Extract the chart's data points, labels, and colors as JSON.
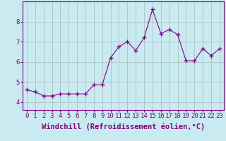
{
  "x": [
    0,
    1,
    2,
    3,
    4,
    5,
    6,
    7,
    8,
    9,
    10,
    11,
    12,
    13,
    14,
    15,
    16,
    17,
    18,
    19,
    20,
    21,
    22,
    23
  ],
  "y": [
    4.6,
    4.5,
    4.3,
    4.3,
    4.4,
    4.4,
    4.4,
    4.4,
    4.85,
    4.85,
    6.2,
    6.75,
    7.0,
    6.55,
    7.2,
    8.6,
    7.4,
    7.6,
    7.35,
    6.05,
    6.05,
    6.65,
    6.3,
    6.65
  ],
  "line_color": "#800080",
  "marker": "+",
  "marker_size": 4,
  "background_color": "#c8eaf0",
  "grid_color": "#aabbbb",
  "xlabel": "Windchill (Refroidissement éolien,°C)",
  "xlabel_fontsize": 7.5,
  "tick_fontsize": 6.5,
  "ylim": [
    3.6,
    9.0
  ],
  "xlim": [
    -0.5,
    23.5
  ],
  "yticks": [
    4,
    5,
    6,
    7,
    8
  ],
  "xticks": [
    0,
    1,
    2,
    3,
    4,
    5,
    6,
    7,
    8,
    9,
    10,
    11,
    12,
    13,
    14,
    15,
    16,
    17,
    18,
    19,
    20,
    21,
    22,
    23
  ]
}
